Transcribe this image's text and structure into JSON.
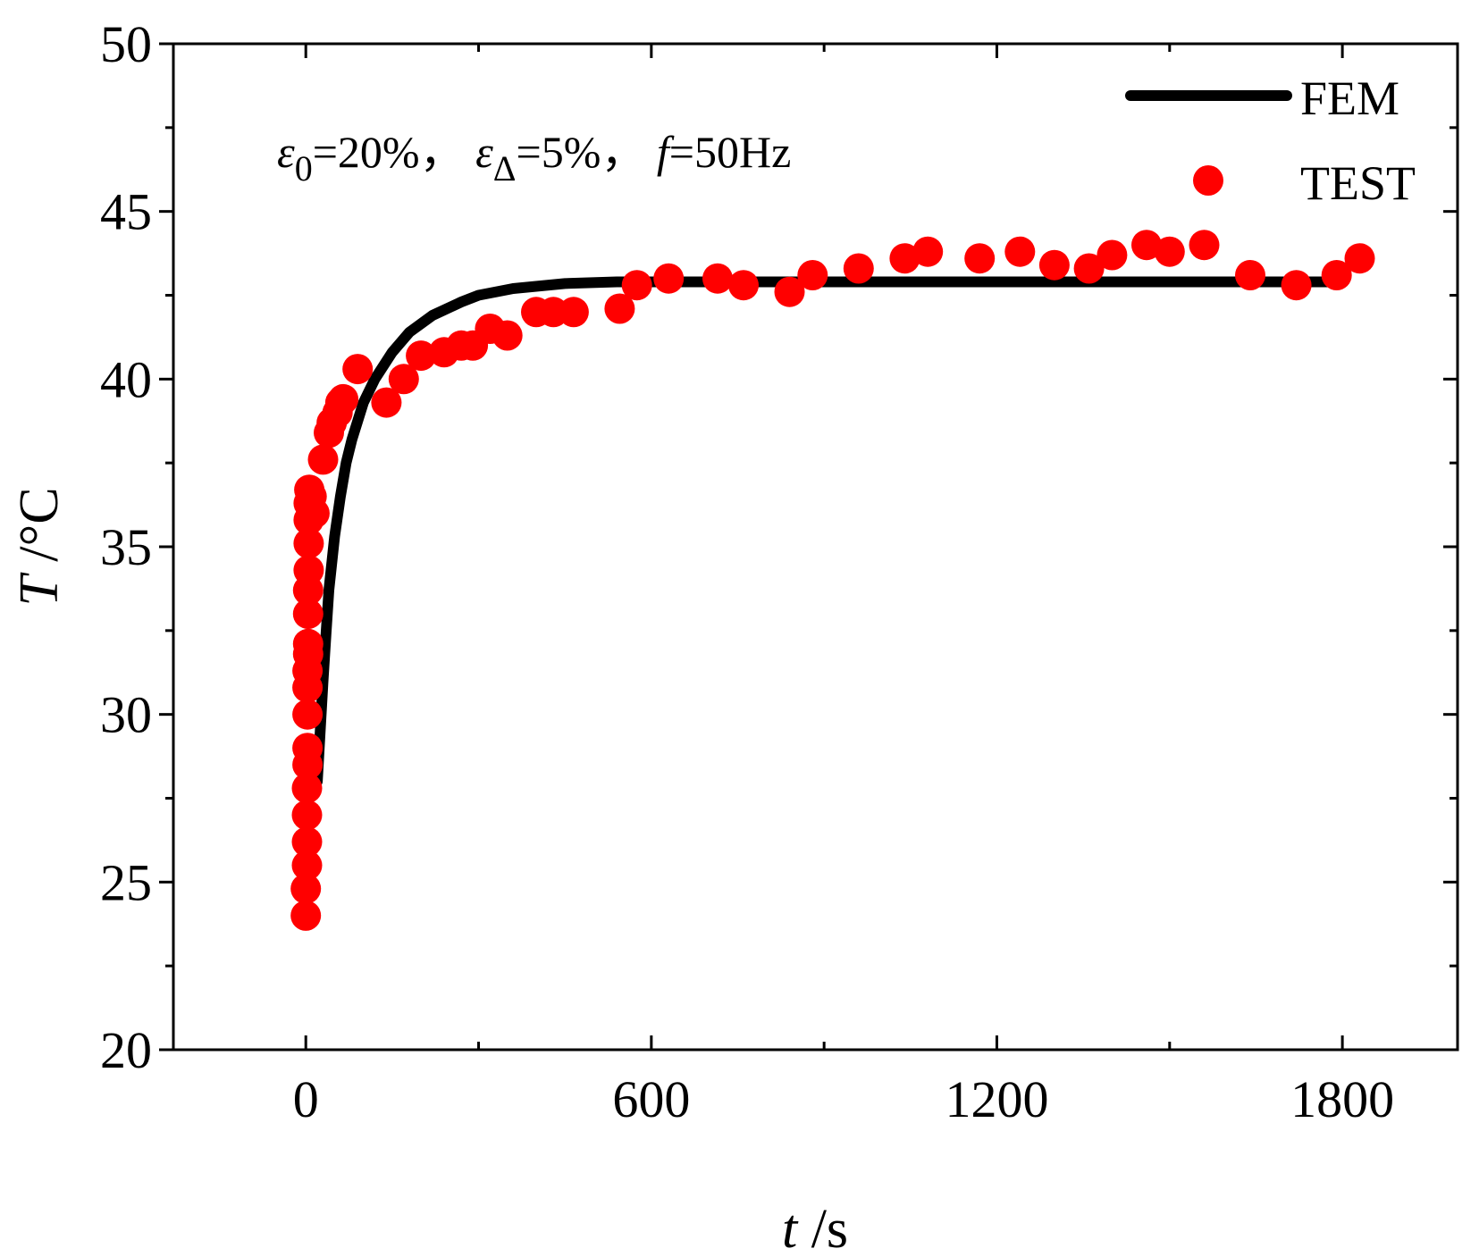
{
  "chart_data": {
    "type": "line",
    "x_axis": {
      "label_var": "t",
      "label_unit": " /s",
      "ticks": [
        0,
        600,
        1200,
        1800
      ],
      "minor_ticks": [
        300,
        900,
        1500
      ],
      "range": [
        -230,
        2000
      ]
    },
    "y_axis": {
      "label_var": "T",
      "label_unit": " /°C",
      "ticks": [
        20,
        25,
        30,
        35,
        40,
        45,
        50
      ],
      "minor_ticks": [
        22.5,
        27.5,
        32.5,
        37.5,
        42.5,
        47.5
      ],
      "range": [
        20,
        50
      ]
    },
    "annotation": {
      "eps": "ε",
      "sub0": "0",
      "val0": "=20%， ",
      "subD": "Δ",
      "valD": "=5%， ",
      "f": "f",
      "fval": "=50Hz"
    },
    "legend": {
      "position": "top-right"
    },
    "grid": false,
    "series": [
      {
        "name": "FEM",
        "kind": "line",
        "color": "#000000",
        "x": [
          20,
          25,
          30,
          35,
          40,
          50,
          60,
          70,
          80,
          100,
          120,
          150,
          180,
          220,
          270,
          300,
          360,
          450,
          540,
          600,
          800,
          1200,
          1800
        ],
        "y": [
          28.0,
          29.5,
          31.0,
          32.4,
          33.7,
          35.3,
          36.5,
          37.5,
          38.2,
          39.3,
          40.0,
          40.8,
          41.4,
          41.9,
          42.3,
          42.5,
          42.7,
          42.85,
          42.9,
          42.9,
          42.9,
          42.9,
          42.9
        ]
      },
      {
        "name": "TEST",
        "kind": "scatter",
        "color": "#ff0000",
        "x": [
          0,
          0,
          2,
          2,
          2,
          2,
          3,
          3,
          3,
          3,
          3,
          4,
          4,
          4,
          4,
          5,
          5,
          5,
          5,
          6,
          10,
          15,
          30,
          40,
          45,
          55,
          60,
          65,
          90,
          140,
          170,
          200,
          240,
          270,
          290,
          320,
          350,
          400,
          430,
          465,
          545,
          575,
          630,
          715,
          760,
          840,
          880,
          960,
          1040,
          1080,
          1170,
          1240,
          1300,
          1360,
          1400,
          1460,
          1500,
          1560,
          1640,
          1720,
          1790,
          1830
        ],
        "y": [
          24.0,
          24.8,
          25.5,
          26.2,
          27.0,
          27.8,
          28.5,
          29.0,
          30.0,
          30.8,
          31.3,
          31.8,
          32.1,
          33.0,
          33.7,
          34.3,
          35.1,
          35.8,
          36.3,
          36.7,
          36.5,
          36.0,
          37.6,
          38.4,
          38.7,
          39.0,
          39.3,
          39.4,
          40.3,
          39.3,
          40.0,
          40.7,
          40.8,
          41.0,
          41.0,
          41.5,
          41.3,
          42.0,
          42.0,
          42.0,
          42.1,
          42.8,
          43.0,
          43.0,
          42.8,
          42.6,
          43.1,
          43.3,
          43.6,
          43.8,
          43.6,
          43.8,
          43.4,
          43.3,
          43.7,
          44.0,
          43.8,
          44.0,
          43.1,
          42.8,
          43.1,
          43.6
        ]
      }
    ]
  }
}
